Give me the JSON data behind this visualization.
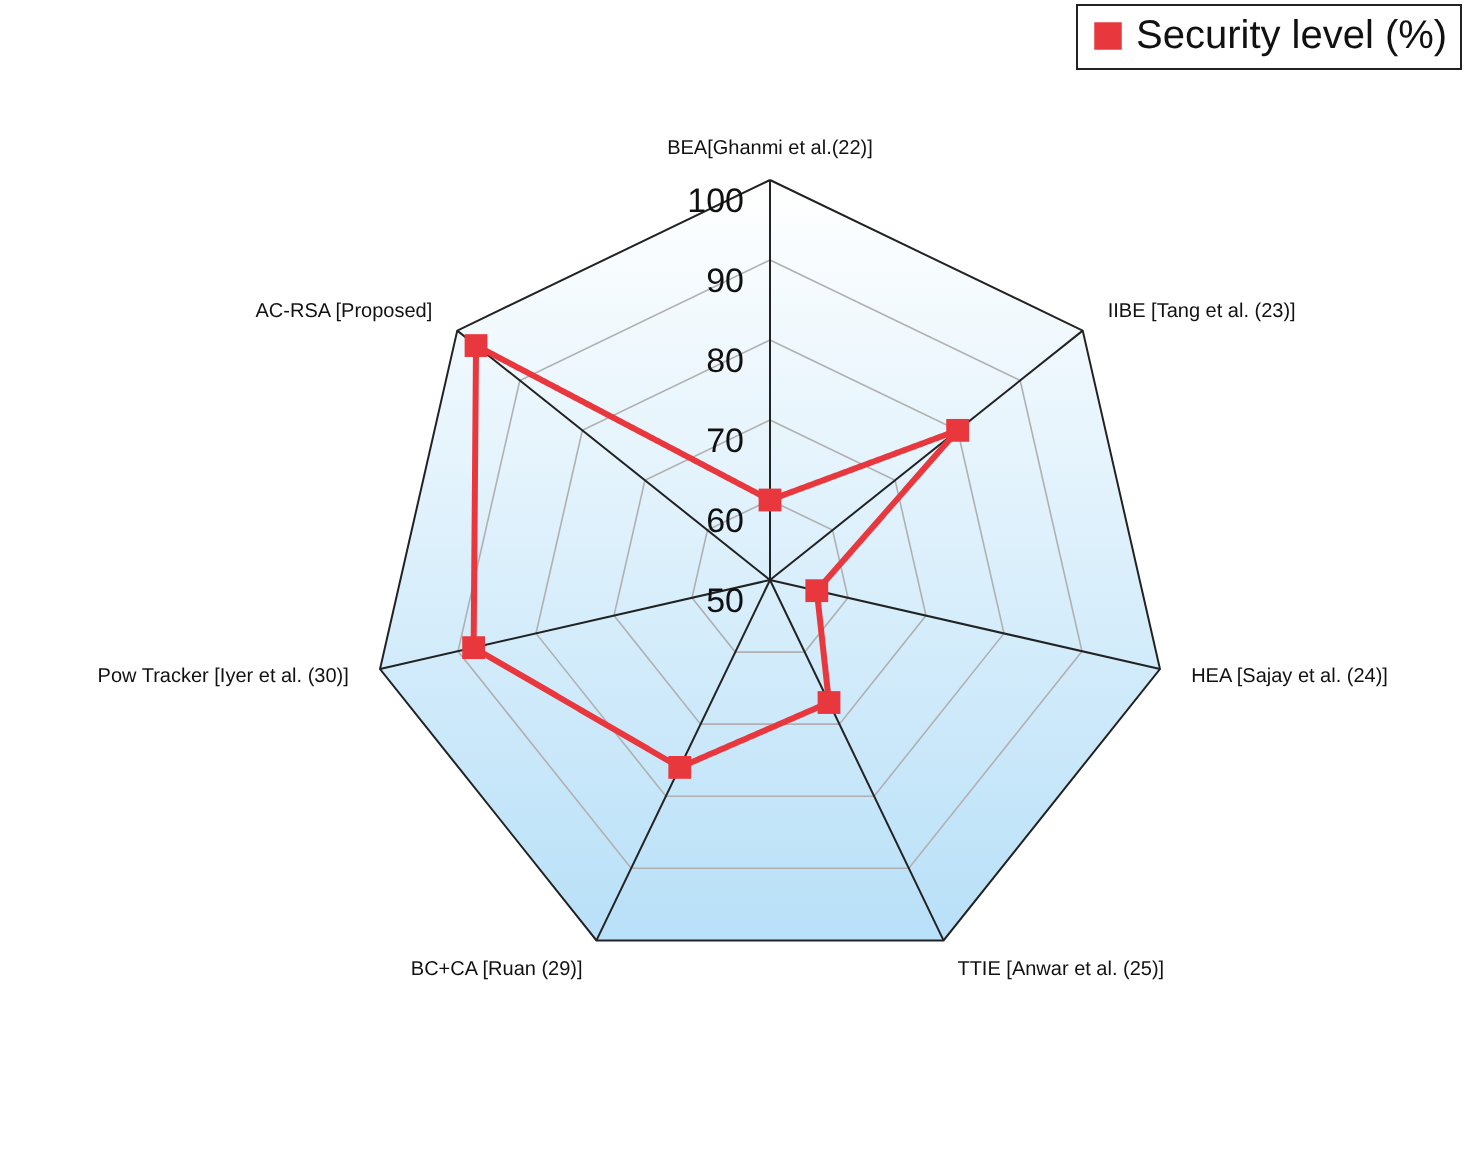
{
  "chart_data": {
    "type": "radar",
    "categories": [
      "BEA[Ghanmi et al.(22)]",
      "IIBE [Tang et al. (23)]",
      "HEA [Sajay et al. (24)]",
      "TTIE [Anwar et al. (25)]",
      "BC+CA [Ruan (29)]",
      "Pow Tracker [Iyer et al. (30)]",
      "AC-RSA [Proposed]"
    ],
    "series": [
      {
        "name": "Security level (%)",
        "color": "#e8383d",
        "values": [
          60,
          80,
          56,
          67,
          76,
          88,
          97
        ]
      }
    ],
    "ylim": [
      50,
      100
    ],
    "yticks": [
      50,
      60,
      70,
      80,
      90,
      100
    ],
    "grid": true,
    "legend": "top right",
    "marker": "square",
    "line_style": "solid"
  }
}
